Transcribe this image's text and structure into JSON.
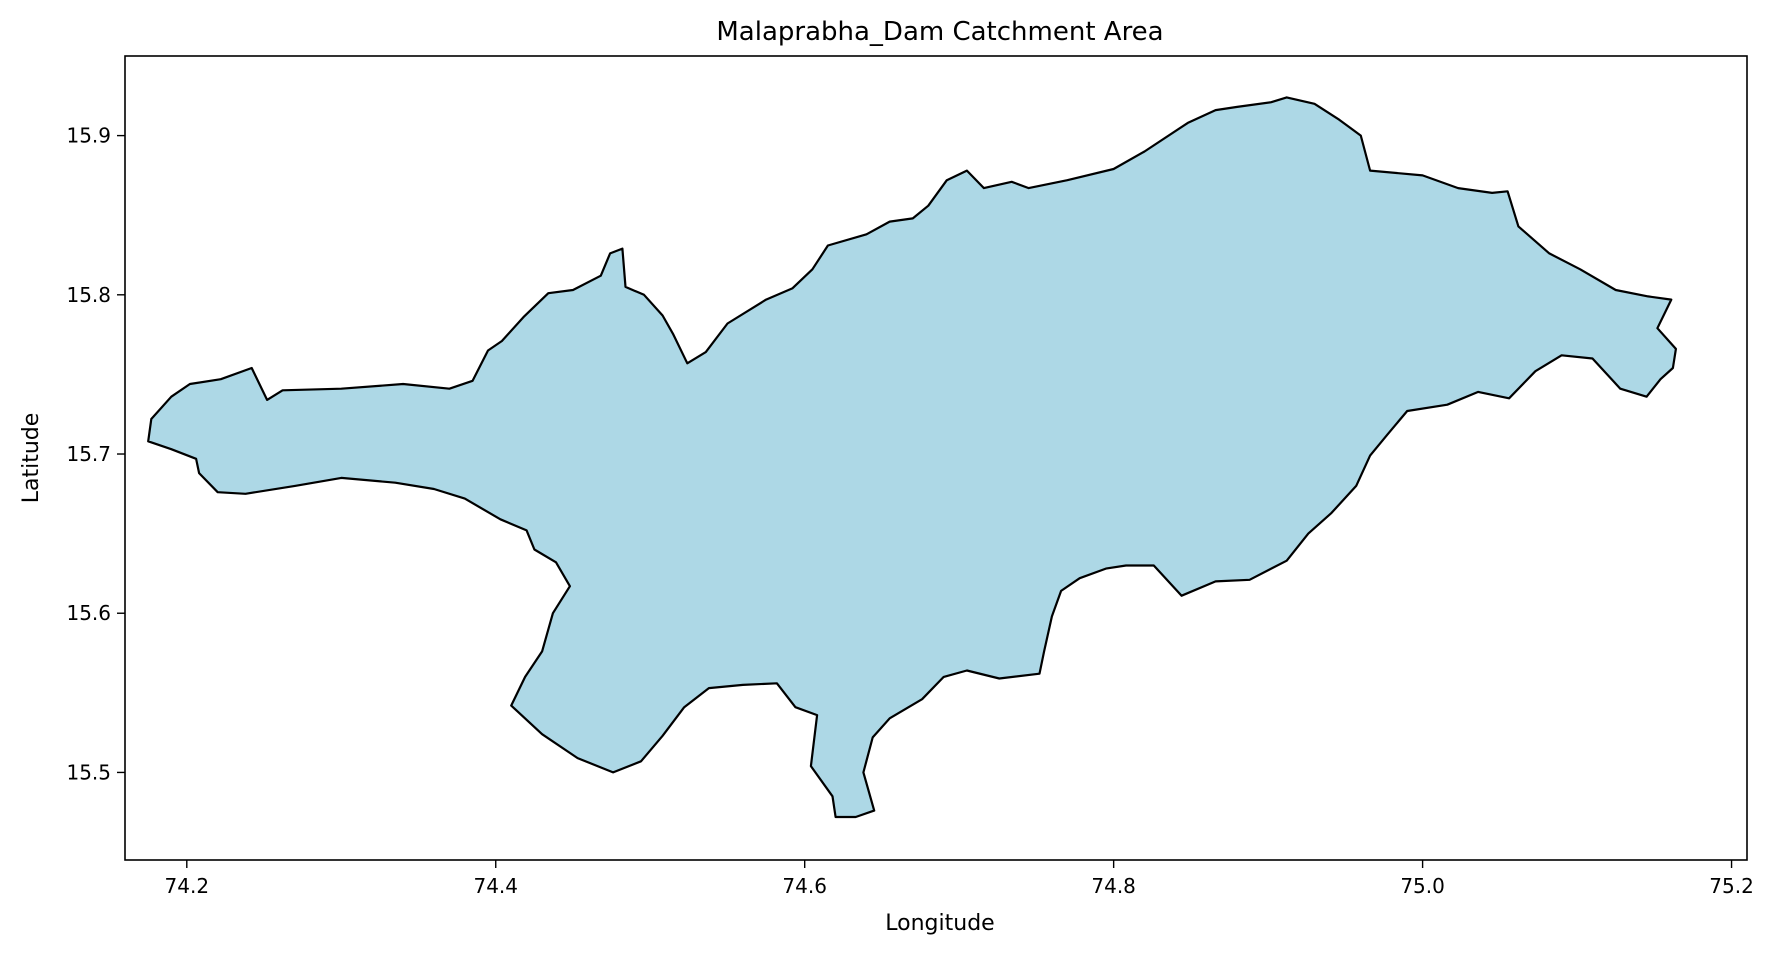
{
  "chart_data": {
    "type": "map",
    "title": "Malaprabha_Dam Catchment Area",
    "xlabel": "Longitude",
    "ylabel": "Latitude",
    "xlim": [
      74.16,
      75.21
    ],
    "ylim": [
      15.445,
      15.95
    ],
    "xticks": [
      {
        "value": 74.2,
        "label": "74.2"
      },
      {
        "value": 74.4,
        "label": "74.4"
      },
      {
        "value": 74.6,
        "label": "74.6"
      },
      {
        "value": 74.8,
        "label": "74.8"
      },
      {
        "value": 75.0,
        "label": "75.0"
      },
      {
        "value": 75.2,
        "label": "75.2"
      }
    ],
    "yticks": [
      {
        "value": 15.5,
        "label": "15.5"
      },
      {
        "value": 15.6,
        "label": "15.6"
      },
      {
        "value": 15.7,
        "label": "15.7"
      },
      {
        "value": 15.8,
        "label": "15.8"
      },
      {
        "value": 15.9,
        "label": "15.9"
      }
    ],
    "grid": false,
    "fill_color": "#add8e6",
    "edge_color": "#000000",
    "polygon": [
      [
        74.222,
        15.747
      ],
      [
        74.242,
        15.754
      ],
      [
        74.252,
        15.734
      ],
      [
        74.262,
        15.74
      ],
      [
        74.3,
        15.741
      ],
      [
        74.34,
        15.744
      ],
      [
        74.37,
        15.741
      ],
      [
        74.385,
        15.746
      ],
      [
        74.395,
        15.765
      ],
      [
        74.404,
        15.771
      ],
      [
        74.418,
        15.786
      ],
      [
        74.434,
        15.801
      ],
      [
        74.45,
        15.803
      ],
      [
        74.468,
        15.812
      ],
      [
        74.474,
        15.826
      ],
      [
        74.482,
        15.829
      ],
      [
        74.484,
        15.805
      ],
      [
        74.496,
        15.8
      ],
      [
        74.508,
        15.787
      ],
      [
        74.515,
        15.775
      ],
      [
        74.524,
        15.757
      ],
      [
        74.536,
        15.764
      ],
      [
        74.55,
        15.782
      ],
      [
        74.575,
        15.797
      ],
      [
        74.592,
        15.804
      ],
      [
        74.605,
        15.816
      ],
      [
        74.615,
        15.831
      ],
      [
        74.64,
        15.838
      ],
      [
        74.655,
        15.846
      ],
      [
        74.67,
        15.848
      ],
      [
        74.68,
        15.856
      ],
      [
        74.692,
        15.872
      ],
      [
        74.705,
        15.878
      ],
      [
        74.716,
        15.867
      ],
      [
        74.734,
        15.871
      ],
      [
        74.745,
        15.867
      ],
      [
        74.77,
        15.872
      ],
      [
        74.8,
        15.879
      ],
      [
        74.82,
        15.89
      ],
      [
        74.848,
        15.908
      ],
      [
        74.866,
        15.916
      ],
      [
        74.88,
        15.918
      ],
      [
        74.902,
        15.921
      ],
      [
        74.912,
        15.924
      ],
      [
        74.93,
        15.92
      ],
      [
        74.946,
        15.91
      ],
      [
        74.96,
        15.9
      ],
      [
        74.966,
        15.878
      ],
      [
        75.0,
        15.875
      ],
      [
        75.023,
        15.867
      ],
      [
        75.045,
        15.864
      ],
      [
        75.055,
        15.865
      ],
      [
        75.062,
        15.843
      ],
      [
        75.082,
        15.826
      ],
      [
        75.102,
        15.816
      ],
      [
        75.125,
        15.803
      ],
      [
        75.146,
        15.799
      ],
      [
        75.161,
        15.797
      ],
      [
        75.152,
        15.779
      ],
      [
        75.164,
        15.766
      ],
      [
        75.162,
        15.754
      ],
      [
        75.154,
        15.747
      ],
      [
        75.145,
        15.736
      ],
      [
        75.128,
        15.741
      ],
      [
        75.11,
        15.76
      ],
      [
        75.09,
        15.762
      ],
      [
        75.073,
        15.752
      ],
      [
        75.056,
        15.735
      ],
      [
        75.036,
        15.739
      ],
      [
        75.016,
        15.731
      ],
      [
        74.99,
        15.727
      ],
      [
        74.977,
        15.712
      ],
      [
        74.966,
        15.699
      ],
      [
        74.957,
        15.68
      ],
      [
        74.941,
        15.663
      ],
      [
        74.926,
        15.65
      ],
      [
        74.912,
        15.633
      ],
      [
        74.888,
        15.621
      ],
      [
        74.866,
        15.62
      ],
      [
        74.844,
        15.611
      ],
      [
        74.826,
        15.63
      ],
      [
        74.808,
        15.63
      ],
      [
        74.795,
        15.628
      ],
      [
        74.778,
        15.622
      ],
      [
        74.766,
        15.614
      ],
      [
        74.76,
        15.598
      ],
      [
        74.755,
        15.576
      ],
      [
        74.752,
        15.562
      ],
      [
        74.726,
        15.559
      ],
      [
        74.705,
        15.564
      ],
      [
        74.69,
        15.56
      ],
      [
        74.676,
        15.546
      ],
      [
        74.655,
        15.534
      ],
      [
        74.644,
        15.522
      ],
      [
        74.638,
        15.5
      ],
      [
        74.645,
        15.476
      ],
      [
        74.633,
        15.472
      ],
      [
        74.62,
        15.472
      ],
      [
        74.618,
        15.485
      ],
      [
        74.604,
        15.504
      ],
      [
        74.608,
        15.536
      ],
      [
        74.594,
        15.541
      ],
      [
        74.582,
        15.556
      ],
      [
        74.56,
        15.555
      ],
      [
        74.538,
        15.553
      ],
      [
        74.522,
        15.541
      ],
      [
        74.508,
        15.523
      ],
      [
        74.494,
        15.507
      ],
      [
        74.476,
        15.5
      ],
      [
        74.453,
        15.509
      ],
      [
        74.43,
        15.524
      ],
      [
        74.41,
        15.542
      ],
      [
        74.419,
        15.56
      ],
      [
        74.43,
        15.576
      ],
      [
        74.437,
        15.6
      ],
      [
        74.448,
        15.617
      ],
      [
        74.439,
        15.632
      ],
      [
        74.425,
        15.64
      ],
      [
        74.42,
        15.652
      ],
      [
        74.403,
        15.659
      ],
      [
        74.38,
        15.672
      ],
      [
        74.36,
        15.678
      ],
      [
        74.335,
        15.682
      ],
      [
        74.3,
        15.685
      ],
      [
        74.27,
        15.68
      ],
      [
        74.238,
        15.675
      ],
      [
        74.22,
        15.676
      ],
      [
        74.208,
        15.688
      ],
      [
        74.206,
        15.697
      ],
      [
        74.19,
        15.703
      ],
      [
        74.175,
        15.708
      ],
      [
        74.177,
        15.722
      ],
      [
        74.19,
        15.736
      ],
      [
        74.202,
        15.744
      ]
    ]
  }
}
